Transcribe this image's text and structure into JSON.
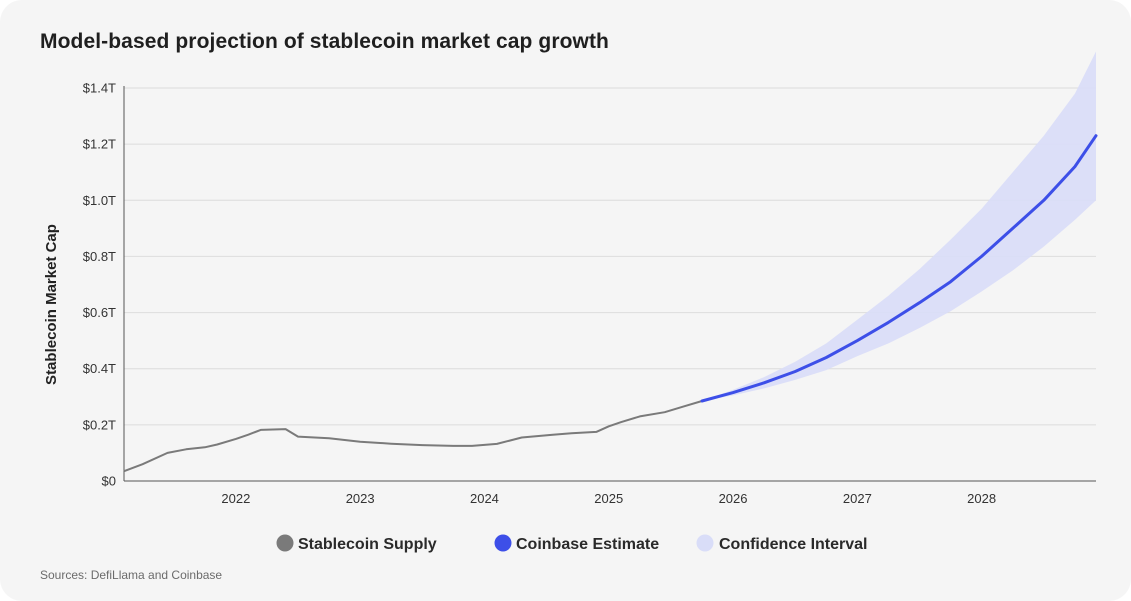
{
  "title": "Model-based projection of stablecoin market cap growth",
  "sources": "Sources: DefiLlama and Coinbase",
  "colors": {
    "supply": "#7a7a7a",
    "estimate": "#3d4fe8",
    "ci": "#d9ddf8",
    "grid": "#dcdcdc",
    "axis": "#555555"
  },
  "chart_data": {
    "type": "line",
    "title": "Model-based projection of stablecoin market cap growth",
    "xlabel": "",
    "ylabel": "Stablecoin Market Cap",
    "xlim": [
      2021.1,
      2028.92
    ],
    "ylim": [
      0,
      1.4
    ],
    "y_ticks": [
      {
        "value": 0,
        "label": "$0"
      },
      {
        "value": 0.2,
        "label": "$0.2T"
      },
      {
        "value": 0.4,
        "label": "$0.4T"
      },
      {
        "value": 0.6,
        "label": "$0.6T"
      },
      {
        "value": 0.8,
        "label": "$0.8T"
      },
      {
        "value": 1.0,
        "label": "$1.0T"
      },
      {
        "value": 1.2,
        "label": "$1.2T"
      },
      {
        "value": 1.4,
        "label": "$1.4T"
      }
    ],
    "x_ticks": [
      {
        "value": 2022,
        "label": "2022"
      },
      {
        "value": 2023,
        "label": "2023"
      },
      {
        "value": 2024,
        "label": "2024"
      },
      {
        "value": 2025,
        "label": "2025"
      },
      {
        "value": 2026,
        "label": "2026"
      },
      {
        "value": 2027,
        "label": "2027"
      },
      {
        "value": 2028,
        "label": "2028"
      }
    ],
    "grid": true,
    "legend": {
      "placement": "bottom",
      "items": [
        {
          "label": "Stablecoin Supply",
          "series": "supply"
        },
        {
          "label": "Coinbase Estimate",
          "series": "estimate"
        },
        {
          "label": "Confidence Interval",
          "series": "ci"
        }
      ]
    },
    "series": [
      {
        "name": "Stablecoin Supply",
        "key": "supply",
        "x": [
          2021.1,
          2021.25,
          2021.45,
          2021.6,
          2021.75,
          2021.85,
          2022.0,
          2022.1,
          2022.2,
          2022.4,
          2022.5,
          2022.75,
          2023.0,
          2023.25,
          2023.5,
          2023.75,
          2023.9,
          2024.1,
          2024.3,
          2024.55,
          2024.7,
          2024.9,
          2025.0,
          2025.1,
          2025.25,
          2025.45,
          2025.6,
          2025.75
        ],
        "y": [
          0.035,
          0.06,
          0.1,
          0.113,
          0.12,
          0.13,
          0.15,
          0.165,
          0.182,
          0.185,
          0.158,
          0.152,
          0.14,
          0.133,
          0.128,
          0.125,
          0.125,
          0.132,
          0.155,
          0.165,
          0.17,
          0.175,
          0.195,
          0.21,
          0.23,
          0.245,
          0.265,
          0.285
        ]
      },
      {
        "name": "Coinbase Estimate",
        "key": "estimate",
        "x": [
          2025.75,
          2026.0,
          2026.25,
          2026.5,
          2026.75,
          2027.0,
          2027.25,
          2027.5,
          2027.75,
          2028.0,
          2028.25,
          2028.5,
          2028.75,
          2028.92
        ],
        "y": [
          0.285,
          0.315,
          0.35,
          0.39,
          0.44,
          0.5,
          0.565,
          0.635,
          0.71,
          0.8,
          0.9,
          1.0,
          1.12,
          1.23
        ],
        "lower": [
          0.285,
          0.305,
          0.33,
          0.36,
          0.395,
          0.445,
          0.49,
          0.545,
          0.605,
          0.675,
          0.75,
          0.835,
          0.93,
          1.0
        ],
        "upper": [
          0.285,
          0.325,
          0.37,
          0.425,
          0.49,
          0.575,
          0.66,
          0.755,
          0.86,
          0.97,
          1.1,
          1.23,
          1.38,
          1.53
        ]
      }
    ]
  }
}
